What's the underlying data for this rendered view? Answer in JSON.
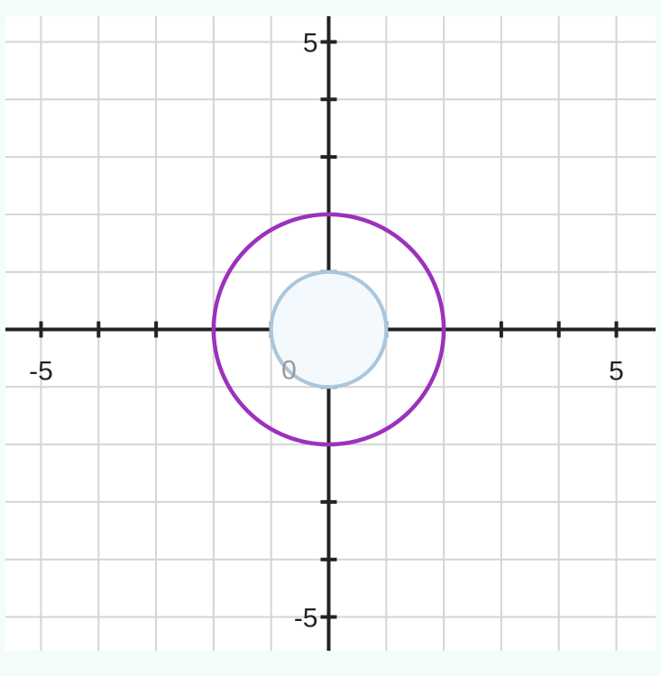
{
  "colors": {
    "page_background": "#f4fcf8",
    "plot_background": "#ffffff",
    "grid": "#d4d4d4",
    "axis": "#222222",
    "inner_circle": "#a9c6dc",
    "outer_circle": "#9c31bd",
    "origin_label": "#9a9a9a"
  },
  "chart_data": {
    "type": "line",
    "title": "",
    "xlabel": "",
    "ylabel": "",
    "xlim": [
      -5.6,
      5.7
    ],
    "ylim": [
      -5.4,
      5.4
    ],
    "grid": true,
    "x_ticks": [
      -5,
      -4,
      -3,
      -2,
      -1,
      1,
      2,
      3,
      4,
      5
    ],
    "y_ticks": [
      -5,
      -4,
      -3,
      -2,
      -1,
      1,
      2,
      3,
      4,
      5
    ],
    "x_tick_labels": [
      {
        "value": -5,
        "text": "-5"
      },
      {
        "value": 5,
        "text": "5"
      }
    ],
    "y_tick_labels": [
      {
        "value": 5,
        "text": "5"
      },
      {
        "value": -5,
        "text": "-5"
      }
    ],
    "origin_label": "0",
    "series": [
      {
        "shape": "circle",
        "center": [
          0,
          0
        ],
        "radius": 1,
        "color": "#a9c6dc",
        "fill": "#f3f9fc"
      },
      {
        "shape": "circle",
        "center": [
          0,
          0
        ],
        "radius": 2,
        "color": "#9c31bd"
      }
    ]
  }
}
